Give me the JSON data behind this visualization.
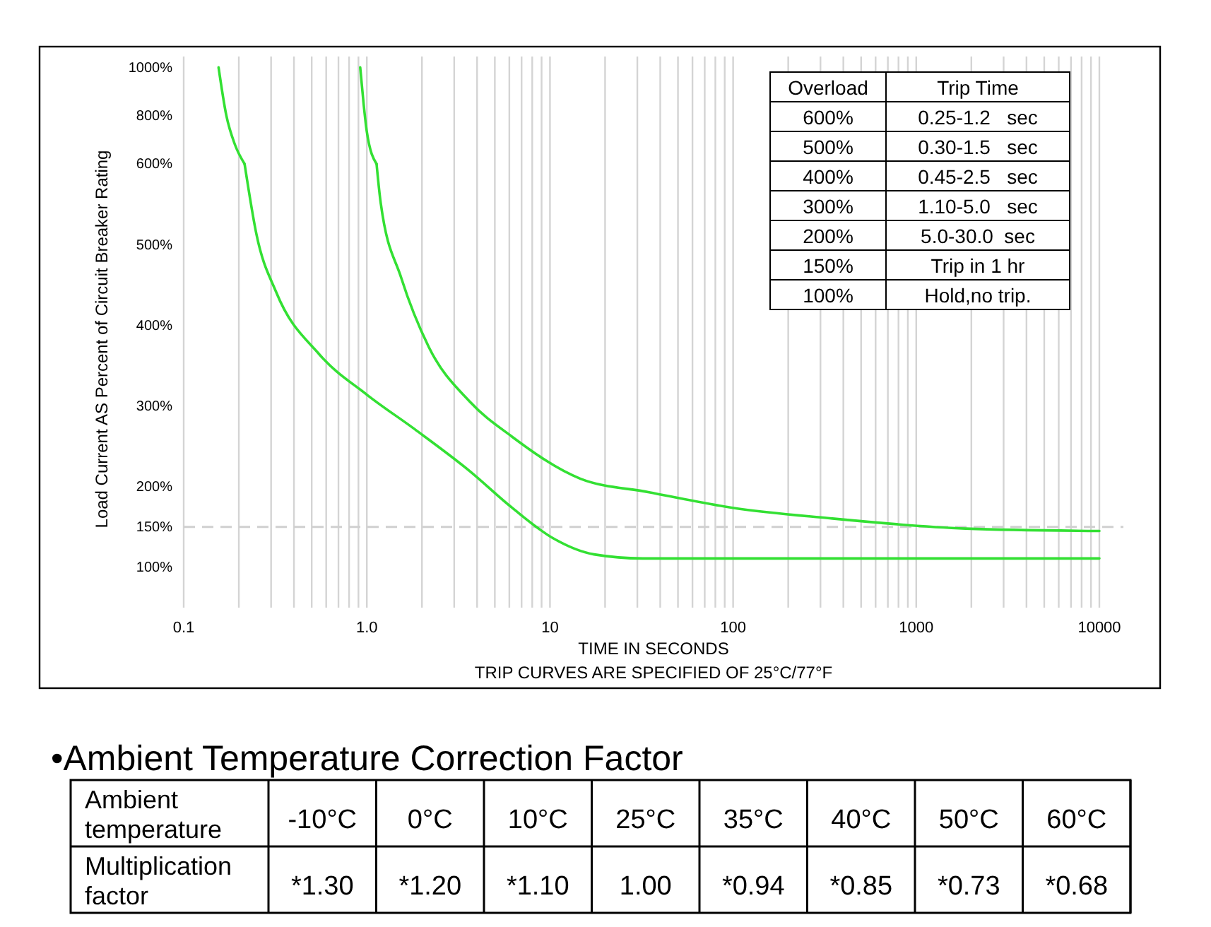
{
  "chart_data": [
    {
      "type": "line",
      "log": "x",
      "xlim": [
        0.1,
        10000
      ],
      "ylim": [
        600,
        1045
      ],
      "tick_labels": "y",
      "legend": false,
      "marker": "none",
      "xticks": [
        0.1,
        0.2,
        0.3,
        0.4,
        0.5,
        0.6,
        0.7,
        0.8,
        0.9,
        1,
        2,
        3,
        4,
        5,
        6,
        7,
        8,
        9,
        10,
        20,
        30,
        40,
        50,
        60,
        70,
        80,
        90,
        100,
        200,
        300,
        400,
        500,
        600,
        700,
        800,
        900,
        1000,
        2000,
        3000,
        4000,
        5000,
        6000,
        7000,
        8000,
        9000,
        10000
      ],
      "yticks": [
        {
          "value": 800,
          "label": "800%"
        },
        {
          "value": 1000,
          "label": "1000%"
        }
      ],
      "grid": "x",
      "line_style": "solid",
      "series": [
        {
          "color": "#33e033",
          "x": [
            0.155,
            0.171,
            0.19,
            0.215
          ],
          "values": [
            1000,
            800,
            682,
            600
          ]
        },
        {
          "color": "#33e033",
          "x": [
            0.92,
            0.96,
            1.0,
            1.13
          ],
          "values": [
            1000,
            850,
            733,
            600
          ]
        }
      ],
      "annotations": [
        "Overload",
        "Trip Time",
        "600%",
        "0.25-1.2   sec",
        "500%",
        "0.30-1.5   sec",
        "400%",
        "0.45-2.5   sec",
        "300%",
        "1.10-5.0   sec",
        "200%",
        "5.0-30.0  sec",
        "150%",
        "Trip in 1 hr",
        "100%",
        "Hold,no trip."
      ]
    },
    {
      "type": "line",
      "xlabel": "TIME IN SECONDS",
      "ylabel": "Load Current AS Percent of Circuit Breaker Rating",
      "log": "x",
      "xlim": [
        0.1,
        10000
      ],
      "ylim": [
        50,
        600
      ],
      "legend": false,
      "marker": "none",
      "xticks": [
        {
          "value": 0.1,
          "label": "0.1"
        },
        {
          "value": 0.2,
          "label": null
        },
        {
          "value": 0.3,
          "label": null
        },
        {
          "value": 0.4,
          "label": null
        },
        {
          "value": 0.5,
          "label": null
        },
        {
          "value": 0.6,
          "label": null
        },
        {
          "value": 0.7,
          "label": null
        },
        {
          "value": 0.8,
          "label": null
        },
        {
          "value": 0.9,
          "label": null
        },
        {
          "value": 1,
          "label": "1.0"
        },
        {
          "value": 2,
          "label": null
        },
        {
          "value": 3,
          "label": null
        },
        {
          "value": 4,
          "label": null
        },
        {
          "value": 5,
          "label": null
        },
        {
          "value": 6,
          "label": null
        },
        {
          "value": 7,
          "label": null
        },
        {
          "value": 8,
          "label": null
        },
        {
          "value": 9,
          "label": null
        },
        {
          "value": 10,
          "label": "10"
        },
        {
          "value": 20,
          "label": null
        },
        {
          "value": 30,
          "label": null
        },
        {
          "value": 40,
          "label": null
        },
        {
          "value": 50,
          "label": null
        },
        {
          "value": 60,
          "label": null
        },
        {
          "value": 70,
          "label": null
        },
        {
          "value": 80,
          "label": null
        },
        {
          "value": 90,
          "label": null
        },
        {
          "value": 100,
          "label": "100"
        },
        {
          "value": 200,
          "label": null
        },
        {
          "value": 300,
          "label": null
        },
        {
          "value": 400,
          "label": null
        },
        {
          "value": 500,
          "label": null
        },
        {
          "value": 600,
          "label": null
        },
        {
          "value": 700,
          "label": null
        },
        {
          "value": 800,
          "label": null
        },
        {
          "value": 900,
          "label": null
        },
        {
          "value": 1000,
          "label": "1000"
        },
        {
          "value": 2000,
          "label": null
        },
        {
          "value": 3000,
          "label": null
        },
        {
          "value": 4000,
          "label": null
        },
        {
          "value": 5000,
          "label": null
        },
        {
          "value": 6000,
          "label": null
        },
        {
          "value": 7000,
          "label": null
        },
        {
          "value": 8000,
          "label": null
        },
        {
          "value": 9000,
          "label": null
        },
        {
          "value": 10000,
          "label": "10000"
        }
      ],
      "yticks": [
        {
          "value": 100,
          "label": "100%"
        },
        {
          "value": 150,
          "label": "150%"
        },
        {
          "value": 200,
          "label": "200%"
        },
        {
          "value": 300,
          "label": "300%"
        },
        {
          "value": 400,
          "label": "400%"
        },
        {
          "value": 500,
          "label": "500%"
        },
        {
          "value": 600,
          "label": "600%"
        }
      ],
      "grid": "x",
      "line_style": "solid",
      "ref_lines": [
        {
          "axis": "y",
          "value": 150,
          "color": "#d0d0d0",
          "line_style": "dashed"
        }
      ],
      "series": [
        {
          "color": "#33e033",
          "x": [
            0.215,
            0.25,
            0.32,
            0.55,
            1.0,
            1.83,
            3.66,
            6.2,
            10.4,
            17.4,
            32,
            100,
            1000,
            10000
          ],
          "values": [
            600,
            512,
            441,
            364,
            314,
            271,
            219,
            174,
            136,
            116,
            111,
            111,
            111,
            111
          ]
        },
        {
          "color": "#33e033",
          "x": [
            1.13,
            1.19,
            1.54,
            2.18,
            3.66,
            6.2,
            14.6,
            34.8,
            98,
            330,
            1860,
            10000
          ],
          "values": [
            600,
            552,
            459,
            373,
            305,
            262,
            210,
            193,
            174,
            161,
            148,
            145
          ]
        }
      ],
      "annotations": [
        "TRIP CURVES ARE SPECIFIED OF 25°C/77°F"
      ]
    },
    {
      "type": "other",
      "title": "•Ambient Temperature Correction Factor",
      "categories": [
        "-10°C",
        "0°C",
        "10°C",
        "25°C",
        "35°C",
        "40°C",
        "50°C",
        "60°C"
      ],
      "values": [
        1.3,
        1.2,
        1.1,
        1.0,
        0.94,
        0.85,
        0.73,
        0.68
      ],
      "value_labels": [
        "*1.30",
        "*1.20",
        "*1.10",
        "1.00",
        "*0.94",
        "*0.85",
        "*0.73",
        "*0.68"
      ],
      "annotations": [
        "Ambient temperature",
        "Multiplication factor"
      ]
    }
  ]
}
